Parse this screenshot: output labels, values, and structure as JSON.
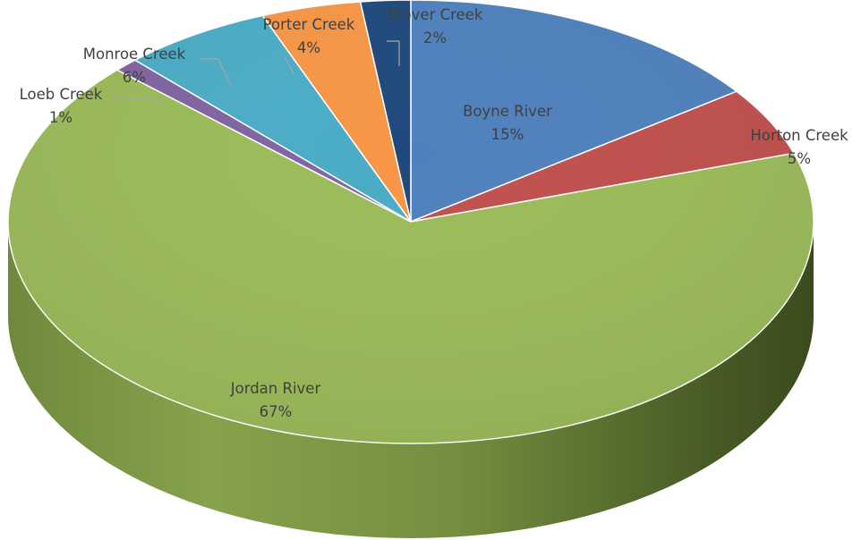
{
  "chart_data": {
    "type": "pie",
    "style": "3d",
    "title": "",
    "slices": [
      {
        "label": "Boyne River",
        "value": 15,
        "display": "15%",
        "color": "#4f81bd"
      },
      {
        "label": "Horton Creek",
        "value": 5,
        "display": "5%",
        "color": "#c0504d"
      },
      {
        "label": "Jordan River",
        "value": 67,
        "display": "67%",
        "color": "#9bbb59"
      },
      {
        "label": "Loeb Creek",
        "value": 1,
        "display": "1%",
        "color": "#8064a2"
      },
      {
        "label": "Monroe Creek",
        "value": 6,
        "display": "6%",
        "color": "#4bacc6"
      },
      {
        "label": "Porter Creek",
        "value": 4,
        "display": "4%",
        "color": "#f79646"
      },
      {
        "label": "Stover Creek",
        "value": 2,
        "display": "2%",
        "color": "#1f497d"
      }
    ],
    "legend": "none",
    "data_labels": "category-and-percent"
  }
}
